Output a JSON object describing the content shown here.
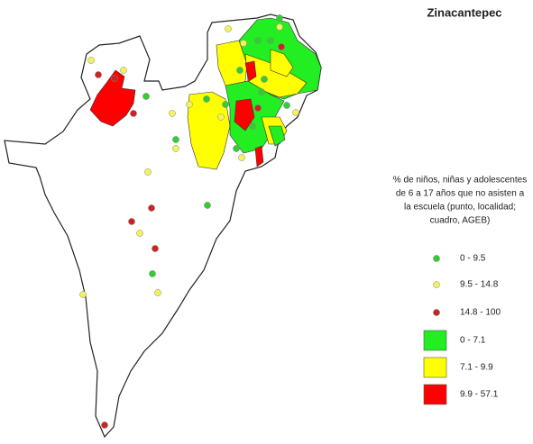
{
  "title": "Zinacantepec",
  "legend": {
    "title_lines": [
      "% de niños, niñas y adolescentes",
      "de 6 a 17 años que no asisten a",
      "la escuela (punto, localidad;",
      "cuadro, AGEB)"
    ],
    "items": [
      {
        "label": "0 - 9.5",
        "symbol": "dot",
        "color": "#33cc33"
      },
      {
        "label": "9.5 - 14.8",
        "symbol": "dot",
        "color": "#f2f25a"
      },
      {
        "label": "14.8 - 100",
        "symbol": "dot",
        "color": "#cc2222"
      },
      {
        "label": "0 - 7.1",
        "symbol": "square",
        "color": "#22ee22"
      },
      {
        "label": "7.1 - 9.9",
        "symbol": "square",
        "color": "#ffff00"
      },
      {
        "label": "9.9 - 57.1",
        "symbol": "square",
        "color": "#ff0000"
      }
    ]
  }
}
